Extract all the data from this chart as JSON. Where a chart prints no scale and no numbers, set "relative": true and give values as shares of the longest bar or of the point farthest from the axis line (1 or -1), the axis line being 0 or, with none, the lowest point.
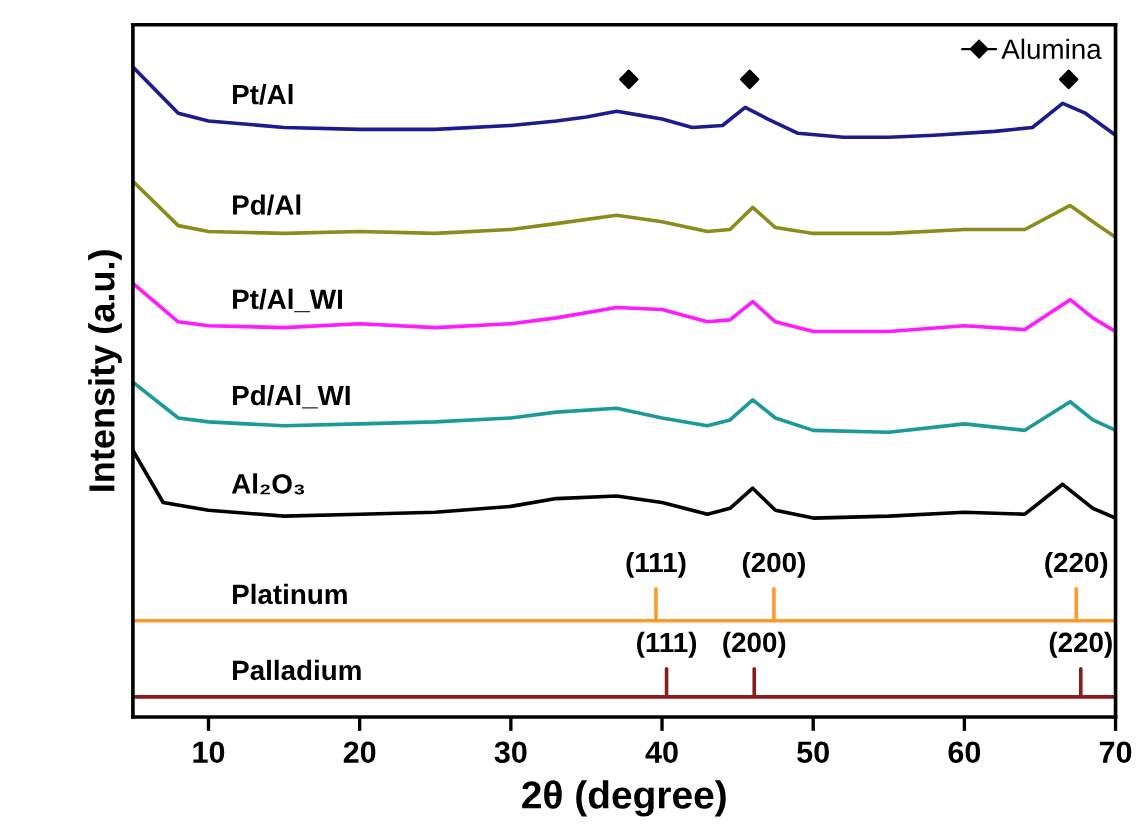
{
  "chart_data": {
    "type": "line",
    "relative": true,
    "xlabel": "2θ (degree)",
    "ylabel": "Intensity (a.u.)",
    "xlim": [
      5,
      70
    ],
    "xticks": [
      10,
      20,
      30,
      40,
      50,
      60,
      70
    ],
    "tick_labels": "x",
    "grid": false,
    "legend": "top right",
    "series": [
      {
        "name": "Pt/Al",
        "color": "#1c1c8e",
        "x": [
          5,
          8,
          10,
          15,
          20,
          25,
          30,
          33,
          35,
          37,
          38.5,
          40,
          42,
          44,
          45.5,
          47,
          49,
          52,
          55,
          58,
          62,
          64.5,
          66.5,
          68,
          70
        ],
        "values": [
          1.0,
          0.929,
          0.917,
          0.907,
          0.904,
          0.904,
          0.91,
          0.917,
          0.923,
          0.932,
          0.926,
          0.92,
          0.907,
          0.91,
          0.938,
          0.92,
          0.898,
          0.892,
          0.892,
          0.895,
          0.901,
          0.907,
          0.944,
          0.929,
          0.895
        ]
      },
      {
        "name": "Pd/Al",
        "color": "#8c8c1c",
        "x": [
          5,
          8,
          10,
          15,
          20,
          25,
          30,
          33,
          37,
          40,
          43,
          44.5,
          46,
          47.5,
          50,
          55,
          60,
          64,
          67,
          68.5,
          70
        ],
        "values": [
          0.824,
          0.756,
          0.747,
          0.744,
          0.747,
          0.744,
          0.75,
          0.759,
          0.772,
          0.762,
          0.747,
          0.75,
          0.784,
          0.753,
          0.744,
          0.744,
          0.75,
          0.75,
          0.787,
          0.762,
          0.738
        ]
      },
      {
        "name": "Pt/Al_WI",
        "color": "#ff1aff",
        "x": [
          5,
          8,
          10,
          15,
          20,
          25,
          30,
          33,
          37,
          40,
          43,
          44.5,
          46,
          47.5,
          50,
          55,
          60,
          64,
          67,
          68.5,
          70
        ],
        "values": [
          0.667,
          0.608,
          0.602,
          0.599,
          0.605,
          0.599,
          0.605,
          0.614,
          0.63,
          0.627,
          0.608,
          0.611,
          0.639,
          0.608,
          0.593,
          0.593,
          0.602,
          0.596,
          0.642,
          0.614,
          0.593
        ]
      },
      {
        "name": "Pd/Al_WI",
        "color": "#1c9a9a",
        "x": [
          5,
          8,
          10,
          15,
          20,
          25,
          30,
          33,
          37,
          40,
          43,
          44.5,
          46,
          47.5,
          50,
          55,
          60,
          64,
          67,
          68.5,
          70
        ],
        "values": [
          0.515,
          0.46,
          0.454,
          0.448,
          0.451,
          0.454,
          0.46,
          0.469,
          0.475,
          0.46,
          0.448,
          0.457,
          0.488,
          0.46,
          0.441,
          0.438,
          0.451,
          0.441,
          0.485,
          0.457,
          0.441
        ]
      },
      {
        "name": "Al₂O₃",
        "color": "#000000",
        "x": [
          5,
          7,
          10,
          15,
          20,
          25,
          30,
          33,
          37,
          40,
          43,
          44.5,
          46,
          47.5,
          50,
          55,
          60,
          64,
          66.5,
          68.5,
          70
        ],
        "values": [
          0.41,
          0.33,
          0.318,
          0.309,
          0.312,
          0.315,
          0.324,
          0.336,
          0.34,
          0.33,
          0.312,
          0.321,
          0.352,
          0.318,
          0.306,
          0.309,
          0.315,
          0.312,
          0.358,
          0.321,
          0.306
        ]
      },
      {
        "name": "Platinum",
        "color": "#ff9a2a",
        "x": [
          5,
          39.6,
          39.6,
          39.6,
          47.4,
          47.4,
          47.4,
          67.4,
          67.4,
          67.4,
          70
        ],
        "values": [
          0.148,
          0.148,
          0.197,
          0.148,
          0.148,
          0.197,
          0.148,
          0.148,
          0.197,
          0.148,
          0.148
        ]
      },
      {
        "name": "Palladium",
        "color": "#8c1c1c",
        "x": [
          5,
          40.3,
          40.3,
          40.3,
          46.1,
          46.1,
          46.1,
          67.7,
          67.7,
          67.7,
          70
        ],
        "values": [
          0.031,
          0.031,
          0.074,
          0.031,
          0.031,
          0.074,
          0.031,
          0.031,
          0.074,
          0.031,
          0.031
        ]
      },
      {
        "name": "Alumina",
        "type": "scatter",
        "color": "#000000",
        "marker": "diamond",
        "x": [
          37.8,
          45.8,
          66.9
        ],
        "values": [
          0.981,
          0.981,
          0.981
        ]
      }
    ],
    "annotations": [
      {
        "text": "(111)",
        "x": 39.6,
        "y": 0.197
      },
      {
        "text": "(200)",
        "x": 47.4,
        "y": 0.197
      },
      {
        "text": "(220)",
        "x": 67.4,
        "y": 0.197
      },
      {
        "text": "(111)",
        "x": 40.3,
        "y": 0.074
      },
      {
        "text": "(200)",
        "x": 46.1,
        "y": 0.074
      },
      {
        "text": "(220)",
        "x": 67.7,
        "y": 0.074
      }
    ]
  }
}
